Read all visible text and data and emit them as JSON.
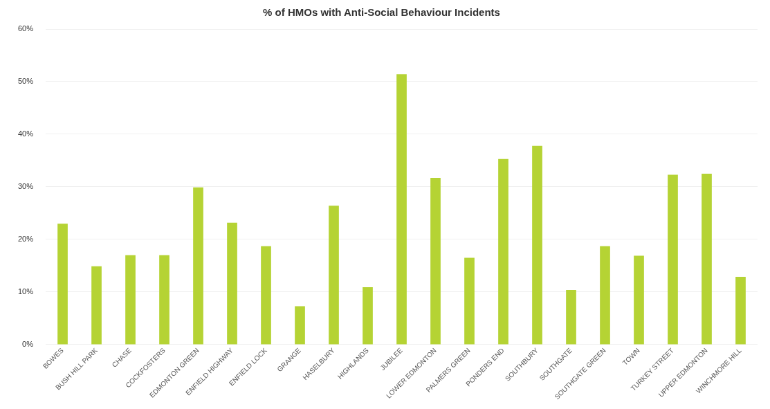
{
  "chart_data": {
    "type": "bar",
    "title": "% of HMOs with Anti-Social Behaviour Incidents",
    "categories": [
      "BOWES",
      "BUSH HILL PARK",
      "CHASE",
      "COCKFOSTERS",
      "EDMONTON GREEN",
      "ENFIELD HIGHWAY",
      "ENFIELD LOCK",
      "GRANGE",
      "HASELBURY",
      "HIGHLANDS",
      "JUBILEE",
      "LOWER EDMONTON",
      "PALMERS GREEN",
      "PONDERS END",
      "SOUTHBURY",
      "SOUTHGATE",
      "SOUTHGATE GREEN",
      "TOWN",
      "TURKEY STREET",
      "UPPER EDMONTON",
      "WINCHMORE HILL"
    ],
    "values": [
      23.0,
      14.9,
      17.0,
      17.0,
      29.9,
      23.2,
      18.7,
      7.3,
      26.4,
      10.9,
      51.4,
      31.7,
      16.5,
      35.3,
      37.8,
      10.4,
      18.7,
      16.9,
      32.3,
      32.5,
      12.9
    ],
    "color": "#b5d334",
    "ylim": [
      0,
      60
    ],
    "yticks": [
      {
        "value": 0,
        "label": "0%"
      },
      {
        "value": 10,
        "label": "10%"
      },
      {
        "value": 20,
        "label": "20%"
      },
      {
        "value": 30,
        "label": "30%"
      },
      {
        "value": 40,
        "label": "40%"
      },
      {
        "value": 50,
        "label": "50%"
      },
      {
        "value": 60,
        "label": "60%"
      }
    ],
    "grid": "y"
  }
}
